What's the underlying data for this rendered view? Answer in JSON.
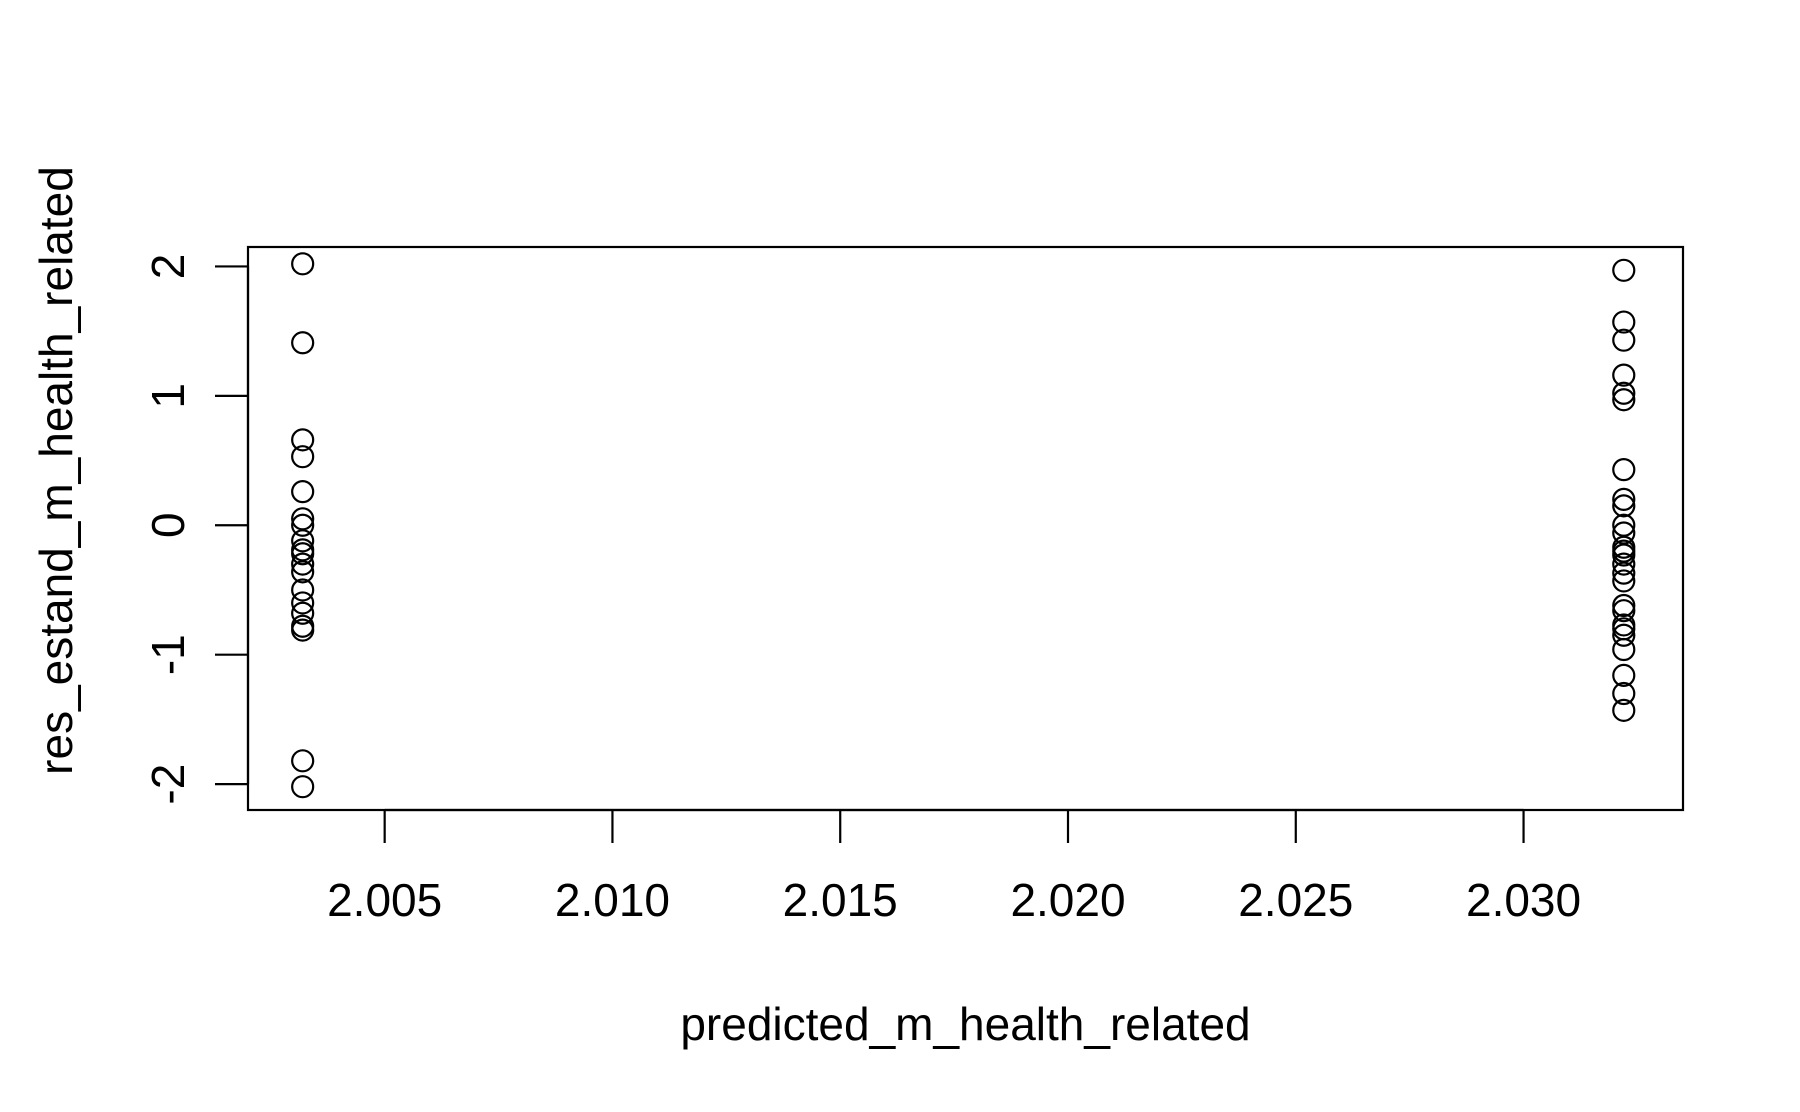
{
  "chart_data": {
    "type": "scatter",
    "title": "",
    "xlabel": "predicted_m_health_related",
    "ylabel": "res_estand_m_health_related",
    "xlim": [
      2.002,
      2.0335
    ],
    "ylim": [
      -2.2,
      2.15
    ],
    "xticks": [
      2.005,
      2.01,
      2.015,
      2.02,
      2.025,
      2.03
    ],
    "xtick_labels": [
      "2.005",
      "2.010",
      "2.015",
      "2.020",
      "2.025",
      "2.030"
    ],
    "yticks": [
      -2,
      -1,
      0,
      1,
      2
    ],
    "ytick_labels": [
      "-2",
      "-1",
      "0",
      "1",
      "2"
    ],
    "grid": false,
    "marker": "open-circle",
    "series": [
      {
        "x": [
          2.0032,
          2.0032,
          2.0032,
          2.0032,
          2.0032,
          2.0032,
          2.0032,
          2.0032,
          2.0032,
          2.0032,
          2.0032,
          2.0032,
          2.0032,
          2.0032,
          2.0032,
          2.0032,
          2.0032,
          2.0032,
          2.0032
        ],
        "y": [
          2.02,
          1.41,
          0.66,
          0.53,
          0.26,
          0.05,
          0.0,
          -0.12,
          -0.19,
          -0.22,
          -0.36,
          -0.5,
          -0.6,
          -0.68,
          -0.78,
          -0.81,
          -1.82,
          -2.02,
          -0.3
        ]
      },
      {
        "x": [
          2.0322,
          2.0322,
          2.0322,
          2.0322,
          2.0322,
          2.0322,
          2.0322,
          2.0322,
          2.0322,
          2.0322,
          2.0322,
          2.0322,
          2.0322,
          2.0322,
          2.0322,
          2.0322,
          2.0322,
          2.0322,
          2.0322,
          2.0322,
          2.0322,
          2.0322,
          2.0322,
          2.0322,
          2.0322,
          2.0322
        ],
        "y": [
          1.97,
          1.57,
          1.43,
          1.16,
          1.02,
          0.97,
          0.43,
          0.2,
          0.15,
          -0.06,
          -0.17,
          -0.23,
          -0.3,
          -0.37,
          -0.43,
          -0.62,
          -0.77,
          -0.8,
          -0.85,
          -0.96,
          -1.16,
          -1.3,
          -1.43,
          -0.2,
          0.0,
          -0.66
        ]
      }
    ]
  }
}
